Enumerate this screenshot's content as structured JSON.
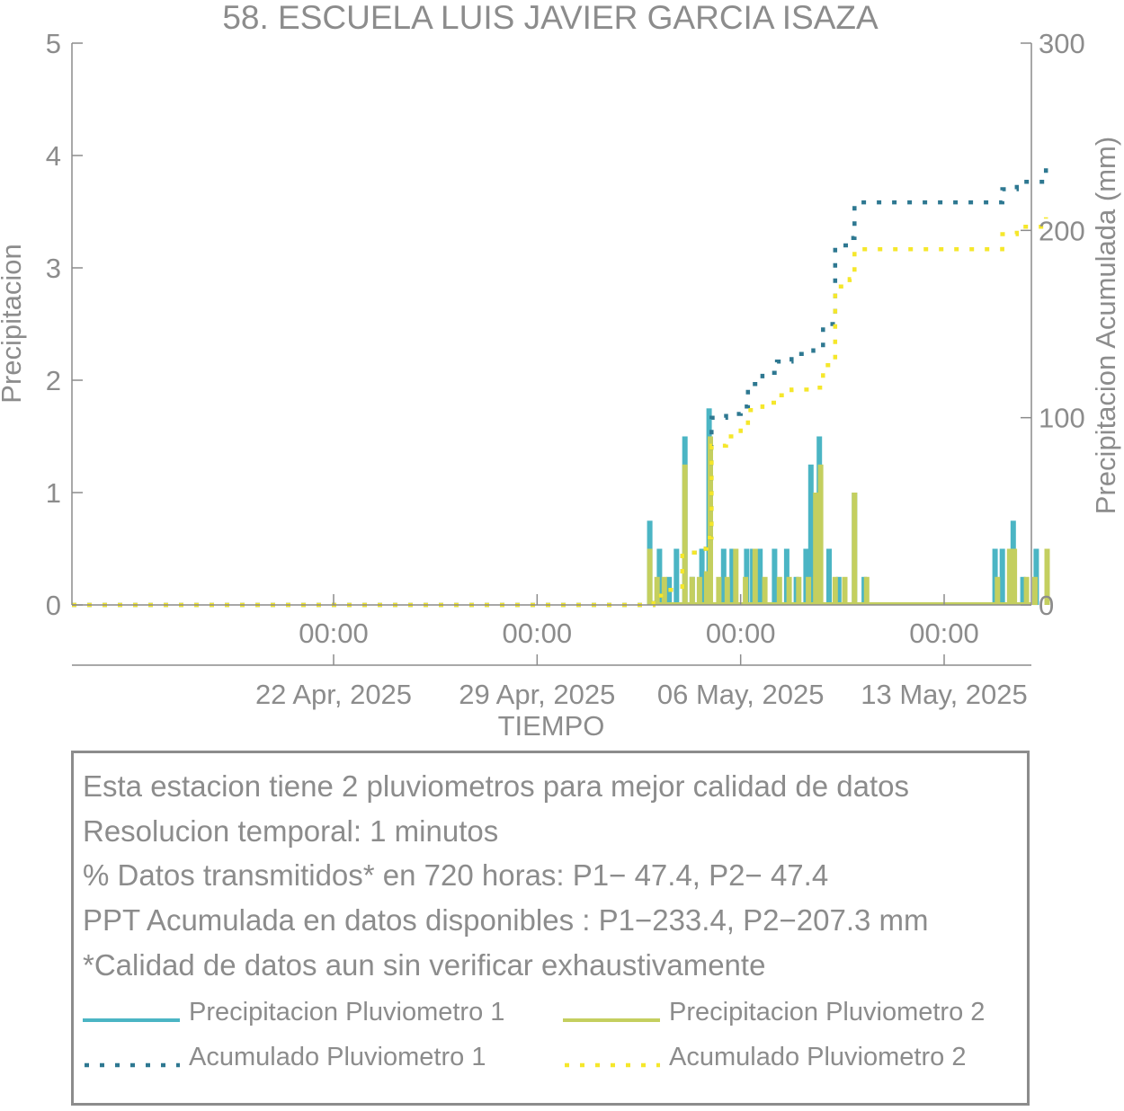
{
  "chart_data": {
    "type": "bar+line",
    "title": "58. ESCUELA LUIS JAVIER GARCIA ISAZA",
    "xlabel": "TIEMPO",
    "ylabel_left": "Precipitacion",
    "ylabel_right": "Precipitacion Acumulada (mm)",
    "ylim_left": [
      0,
      5
    ],
    "ylim_right": [
      0,
      300
    ],
    "yticks_left": [
      "0",
      "1",
      "2",
      "3",
      "4",
      "5"
    ],
    "yticks_right": [
      "0",
      "100",
      "200",
      "300"
    ],
    "xlim_days": [
      "2025-04-13",
      "2025-05-16"
    ],
    "x_ticks": [
      {
        "date": "2025-04-22",
        "time": "00:00",
        "date_label": "22 Apr, 2025"
      },
      {
        "date": "2025-04-29",
        "time": "00:00",
        "date_label": "29 Apr, 2025"
      },
      {
        "date": "2025-05-06",
        "time": "00:00",
        "date_label": "06 May, 2025"
      },
      {
        "date": "2025-05-13",
        "time": "00:00",
        "date_label": "13 May, 2025"
      }
    ],
    "grid": false,
    "series": [
      {
        "name": "Precipitacion Pluviometro 1",
        "kind": "bar",
        "axis": "left",
        "color": "#4bb5c4",
        "x": [
          "2025-05-02 21:00",
          "2025-05-03 05:00",
          "2025-05-03 13:00",
          "2025-05-03 19:00",
          "2025-05-04 02:00",
          "2025-05-04 08:00",
          "2025-05-04 16:00",
          "2025-05-04 22:00",
          "2025-05-05 10:00",
          "2025-05-05 17:00",
          "2025-05-06 05:00",
          "2025-05-06 10:00",
          "2025-05-06 16:00",
          "2025-05-07 04:00",
          "2025-05-07 14:00",
          "2025-05-07 22:00",
          "2025-05-08 06:00",
          "2025-05-08 10:00",
          "2025-05-08 17:00",
          "2025-05-09 01:00",
          "2025-05-09 09:00",
          "2025-05-09 22:00",
          "2025-05-10 06:00",
          "2025-05-14 18:00",
          "2025-05-15 00:00",
          "2025-05-15 09:00",
          "2025-05-15 17:00",
          "2025-05-16 04:00",
          "2025-05-16 13:00"
        ],
        "values": [
          0.75,
          0.5,
          0.25,
          0.5,
          1.5,
          0.25,
          0.5,
          1.75,
          0.5,
          0.5,
          0.5,
          0.5,
          0.5,
          0.5,
          0.5,
          0.25,
          0.5,
          1.25,
          1.5,
          0.5,
          0.25,
          1.0,
          0.25,
          0.5,
          0.5,
          0.75,
          0.25,
          0.5,
          0.5
        ]
      },
      {
        "name": "Precipitacion Pluviometro 2",
        "kind": "bar",
        "axis": "left",
        "color": "#c4cf5f",
        "x": [
          "2025-05-02 21:00",
          "2025-05-03 03:00",
          "2025-05-03 09:00",
          "2025-05-04 02:00",
          "2025-05-04 08:00",
          "2025-05-04 14:00",
          "2025-05-04 20:00",
          "2025-05-04 23:00",
          "2025-05-05 06:00",
          "2025-05-05 13:00",
          "2025-05-05 20:00",
          "2025-05-06 04:00",
          "2025-05-06 12:00",
          "2025-05-06 20:00",
          "2025-05-07 08:00",
          "2025-05-07 16:00",
          "2025-05-08 00:00",
          "2025-05-08 08:00",
          "2025-05-08 14:00",
          "2025-05-08 18:00",
          "2025-05-09 06:00",
          "2025-05-09 14:00",
          "2025-05-09 22:00",
          "2025-05-10 08:00",
          "2025-05-14 20:00",
          "2025-05-15 06:00",
          "2025-05-15 10:00",
          "2025-05-15 20:00",
          "2025-05-16 03:00",
          "2025-05-16 13:00"
        ],
        "values": [
          0.5,
          0.25,
          0.25,
          1.25,
          0.25,
          0.25,
          0.3,
          1.5,
          0.25,
          0.25,
          0.5,
          0.25,
          0.5,
          0.25,
          0.25,
          0.25,
          0.25,
          0.25,
          1.0,
          1.25,
          0.25,
          0.25,
          1.0,
          0.25,
          0.25,
          0.5,
          0.5,
          0.25,
          0.25,
          0.5
        ]
      },
      {
        "name": "Acumulado Pluviometro 1",
        "kind": "line",
        "style": "dotted",
        "axis": "right",
        "color": "#2e7891",
        "x": [
          "2025-04-13 00:00",
          "2025-05-02 20:00",
          "2025-05-03 00:00",
          "2025-05-03 12:00",
          "2025-05-04 00:00",
          "2025-05-04 12:00",
          "2025-05-04 20:00",
          "2025-05-05 00:00",
          "2025-05-05 12:00",
          "2025-05-06 00:00",
          "2025-05-06 06:00",
          "2025-05-06 18:00",
          "2025-05-07 06:00",
          "2025-05-07 18:00",
          "2025-05-08 12:00",
          "2025-05-08 20:00",
          "2025-05-09 06:00",
          "2025-05-09 18:00",
          "2025-05-09 22:00",
          "2025-05-11 00:00",
          "2025-05-12 00:00",
          "2025-05-14 12:00",
          "2025-05-15 00:00",
          "2025-05-15 12:00",
          "2025-05-16 12:00"
        ],
        "values": [
          0,
          0,
          5,
          8,
          28,
          30,
          36,
          100,
          102,
          106,
          118,
          124,
          130,
          134,
          136,
          150,
          192,
          196,
          215,
          215,
          215,
          215,
          222,
          226,
          234
        ]
      },
      {
        "name": "Acumulado Pluviometro 2",
        "kind": "line",
        "style": "dotted",
        "axis": "right",
        "color": "#f5e72b",
        "x": [
          "2025-04-13 00:00",
          "2025-05-02 20:00",
          "2025-05-03 00:00",
          "2025-05-03 12:00",
          "2025-05-04 00:00",
          "2025-05-04 12:00",
          "2025-05-04 20:00",
          "2025-05-05 00:00",
          "2025-05-05 12:00",
          "2025-05-06 00:00",
          "2025-05-06 06:00",
          "2025-05-06 18:00",
          "2025-05-07 06:00",
          "2025-05-07 18:00",
          "2025-05-08 12:00",
          "2025-05-08 20:00",
          "2025-05-09 06:00",
          "2025-05-09 18:00",
          "2025-05-09 22:00",
          "2025-05-11 00:00",
          "2025-05-12 00:00",
          "2025-05-14 12:00",
          "2025-05-15 00:00",
          "2025-05-15 12:00",
          "2025-05-16 12:00"
        ],
        "values": [
          0,
          0,
          5,
          8,
          28,
          30,
          36,
          85,
          90,
          96,
          104,
          108,
          112,
          115,
          116,
          128,
          170,
          174,
          190,
          190,
          190,
          190,
          198,
          202,
          207
        ]
      }
    ]
  },
  "info": {
    "line1": "Esta estacion tiene 2 pluviometros para mejor calidad de datos",
    "line2": "Resolucion temporal: 1 minutos",
    "line3": "% Datos transmitidos* en 720 horas: P1− 47.4, P2− 47.4",
    "line4": "PPT Acumulada en datos disponibles : P1−233.4, P2−207.3 mm",
    "line5": "*Calidad de datos aun sin verificar exhaustivamente"
  },
  "legend": [
    {
      "label": "Precipitacion Pluviometro 1",
      "style": "solid",
      "color": "#4bb5c4"
    },
    {
      "label": "Precipitacion Pluviometro 2",
      "style": "solid",
      "color": "#c4cf5f"
    },
    {
      "label": "Acumulado Pluviometro 1",
      "style": "dotted",
      "color": "#2e7891"
    },
    {
      "label": "Acumulado Pluviometro 2",
      "style": "dotted",
      "color": "#f5e72b"
    }
  ]
}
